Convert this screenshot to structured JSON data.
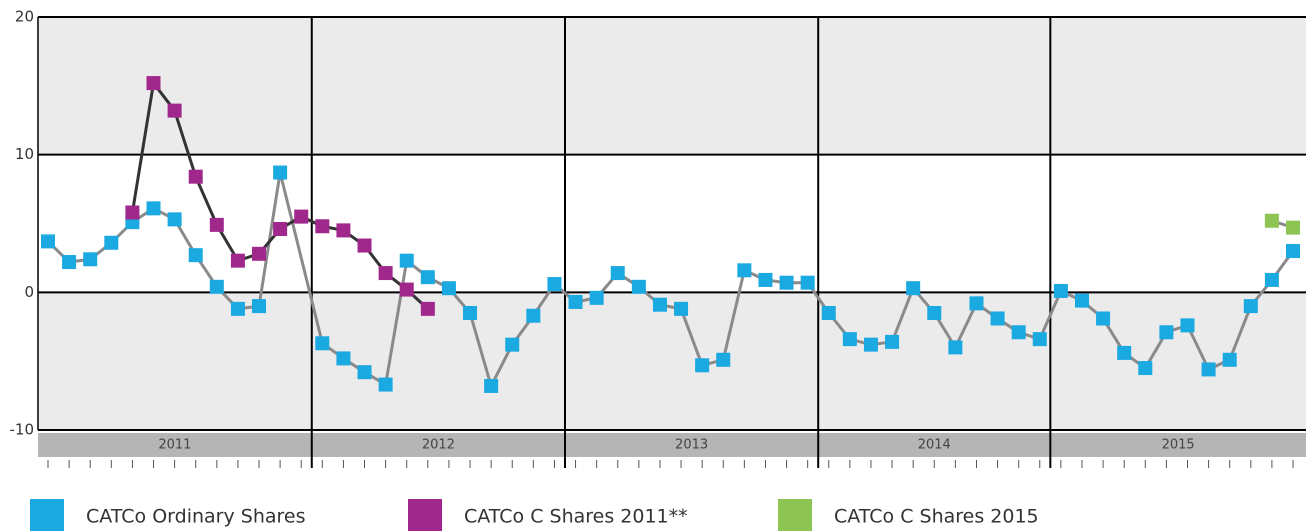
{
  "chart_data": {
    "type": "line",
    "year_labels": [
      "2011",
      "2012",
      "2013",
      "2014",
      "2015"
    ],
    "categories": [
      null,
      null,
      null,
      null,
      null,
      null,
      null,
      null,
      null,
      null,
      null,
      null,
      null,
      null,
      null,
      null,
      null,
      null,
      null,
      null,
      null,
      null,
      null,
      null,
      null,
      null,
      null,
      null,
      null,
      null,
      null,
      null,
      null,
      null,
      null,
      null,
      null,
      null,
      null,
      null,
      null,
      null,
      null,
      null,
      null,
      null,
      null,
      null,
      null,
      null,
      null,
      null,
      null,
      null,
      null,
      null,
      null,
      null,
      null,
      null
    ],
    "ylim": [
      -10,
      20
    ],
    "yticks": [
      -10,
      0,
      10,
      20
    ],
    "grid": true,
    "connect_gaps": true,
    "series": [
      {
        "name": "CATCo Ordinary Shares",
        "color": "#1ba9e1",
        "line_color": "#8a8a8a",
        "values": [
          3.7,
          2.2,
          2.4,
          3.6,
          5.1,
          6.1,
          5.3,
          2.7,
          0.4,
          -1.2,
          -1.0,
          8.7,
          null,
          -3.7,
          -4.8,
          -5.8,
          -6.7,
          2.3,
          1.1,
          0.3,
          -1.5,
          -6.8,
          -3.8,
          -1.7,
          0.6,
          -0.7,
          -0.4,
          1.4,
          0.4,
          -0.9,
          -1.2,
          -5.3,
          -4.9,
          1.6,
          0.9,
          0.7,
          0.7,
          -1.5,
          -3.4,
          -3.8,
          -3.6,
          0.3,
          -1.5,
          -4.0,
          -0.8,
          -1.9,
          -2.9,
          -3.4,
          0.1,
          -0.6,
          -1.9,
          -4.4,
          -5.5,
          -2.9,
          -2.4,
          -5.6,
          -4.9,
          -1.0,
          0.9,
          3.0
        ]
      },
      {
        "name": "CATCo C Shares 2011**",
        "color": "#a0288c",
        "line_color": "#333333",
        "values": [
          null,
          null,
          null,
          null,
          5.8,
          15.2,
          13.2,
          8.4,
          4.9,
          2.3,
          2.8,
          4.6,
          5.5,
          4.8,
          4.5,
          3.4,
          1.4,
          0.2,
          -1.2,
          null,
          null,
          null,
          null,
          null,
          null,
          null,
          null,
          null,
          null,
          null,
          null,
          null,
          null,
          null,
          null,
          null,
          null,
          null,
          null,
          null,
          null,
          null,
          null,
          null,
          null,
          null,
          null,
          null,
          null,
          null,
          null,
          null,
          null,
          null,
          null,
          null,
          null,
          null,
          null,
          null
        ]
      },
      {
        "name": "CATCo C Shares 2015",
        "color": "#8dc453",
        "line_color": "#8a8a8a",
        "values": [
          null,
          null,
          null,
          null,
          null,
          null,
          null,
          null,
          null,
          null,
          null,
          null,
          null,
          null,
          null,
          null,
          null,
          null,
          null,
          null,
          null,
          null,
          null,
          null,
          null,
          null,
          null,
          null,
          null,
          null,
          null,
          null,
          null,
          null,
          null,
          null,
          null,
          null,
          null,
          null,
          null,
          null,
          null,
          null,
          null,
          null,
          null,
          null,
          null,
          null,
          null,
          null,
          null,
          null,
          null,
          null,
          null,
          null,
          5.2,
          4.7
        ]
      }
    ]
  }
}
